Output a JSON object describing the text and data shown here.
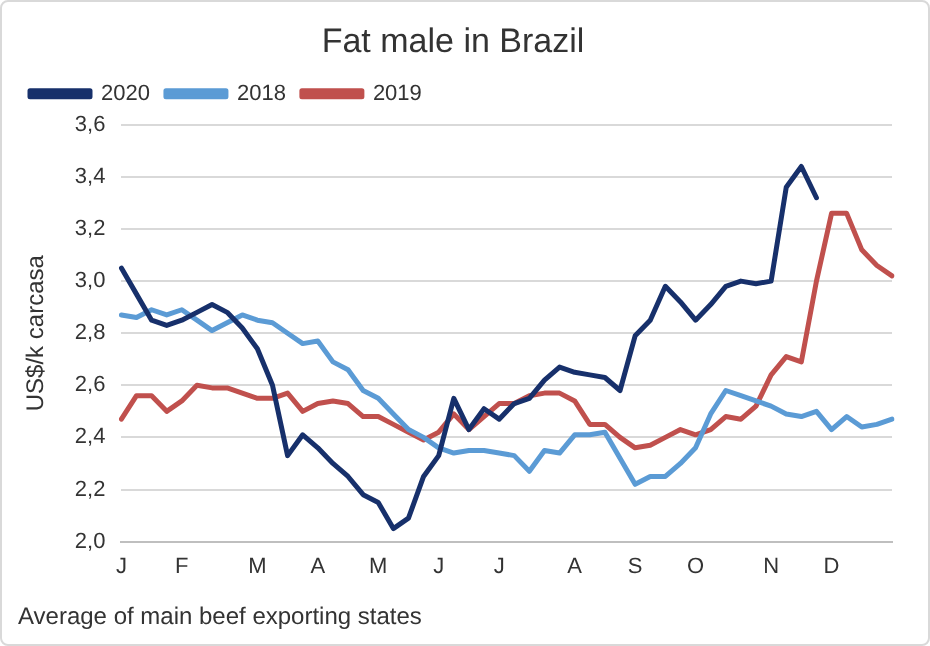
{
  "chart_data": {
    "type": "line",
    "title": "Fat male in Brazil",
    "ylabel": "US$/k carcasa",
    "categories": [
      "J",
      null,
      null,
      null,
      "F",
      null,
      null,
      null,
      null,
      "M",
      null,
      null,
      null,
      "A",
      null,
      null,
      null,
      "M",
      null,
      null,
      null,
      "J",
      null,
      null,
      null,
      "J",
      null,
      null,
      null,
      null,
      "A",
      null,
      null,
      null,
      "S",
      null,
      null,
      null,
      "O",
      null,
      null,
      null,
      null,
      "N",
      null,
      null,
      null,
      "D",
      null,
      null,
      null,
      null
    ],
    "series": [
      {
        "name": "2020",
        "color": "#17306b",
        "values": [
          3.05,
          2.95,
          2.85,
          2.83,
          2.85,
          2.88,
          2.91,
          2.88,
          2.82,
          2.74,
          2.6,
          2.33,
          2.41,
          2.36,
          2.3,
          2.25,
          2.18,
          2.15,
          2.05,
          2.09,
          2.25,
          2.33,
          2.55,
          2.43,
          2.51,
          2.47,
          2.53,
          2.55,
          2.62,
          2.67,
          2.65,
          2.64,
          2.63,
          2.58,
          2.79,
          2.85,
          2.98,
          2.92,
          2.85,
          2.91,
          2.98,
          3.0,
          2.99,
          3.0,
          3.36,
          3.44,
          3.32,
          null,
          null,
          null,
          null,
          null
        ]
      },
      {
        "name": "2018",
        "color": "#5b9bd5",
        "values": [
          2.87,
          2.86,
          2.89,
          2.87,
          2.89,
          2.85,
          2.81,
          2.84,
          2.87,
          2.85,
          2.84,
          2.8,
          2.76,
          2.77,
          2.69,
          2.66,
          2.58,
          2.55,
          2.49,
          2.43,
          2.4,
          2.36,
          2.34,
          2.35,
          2.35,
          2.34,
          2.33,
          2.27,
          2.35,
          2.34,
          2.41,
          2.41,
          2.42,
          2.32,
          2.22,
          2.25,
          2.25,
          2.3,
          2.36,
          2.49,
          2.58,
          2.56,
          2.54,
          2.52,
          2.49,
          2.48,
          2.5,
          2.43,
          2.48,
          2.44,
          2.45,
          2.47
        ]
      },
      {
        "name": "2019",
        "color": "#c0504d",
        "values": [
          2.47,
          2.56,
          2.56,
          2.5,
          2.54,
          2.6,
          2.59,
          2.59,
          2.57,
          2.55,
          2.55,
          2.57,
          2.5,
          2.53,
          2.54,
          2.53,
          2.48,
          2.48,
          2.45,
          2.42,
          2.39,
          2.42,
          2.49,
          2.43,
          2.48,
          2.53,
          2.53,
          2.56,
          2.57,
          2.57,
          2.54,
          2.45,
          2.45,
          2.4,
          2.36,
          2.37,
          2.4,
          2.43,
          2.41,
          2.43,
          2.48,
          2.47,
          2.52,
          2.64,
          2.71,
          2.69,
          3.0,
          3.26,
          3.26,
          3.12,
          3.06,
          3.02
        ]
      }
    ],
    "ylim": [
      2.0,
      3.6
    ],
    "yticks": [
      {
        "value": 2.0,
        "label": "2,0"
      },
      {
        "value": 2.2,
        "label": "2,2"
      },
      {
        "value": 2.4,
        "label": "2,4"
      },
      {
        "value": 2.6,
        "label": "2,6"
      },
      {
        "value": 2.8,
        "label": "2,8"
      },
      {
        "value": 3.0,
        "label": "3,0"
      },
      {
        "value": 3.2,
        "label": "3,2"
      },
      {
        "value": 3.4,
        "label": "3,4"
      },
      {
        "value": 3.6,
        "label": "3,6"
      }
    ],
    "grid": "y",
    "legend": "top left",
    "marker": "none",
    "line_style": "solid",
    "annotations": [
      "Average of main beef exporting states"
    ]
  }
}
